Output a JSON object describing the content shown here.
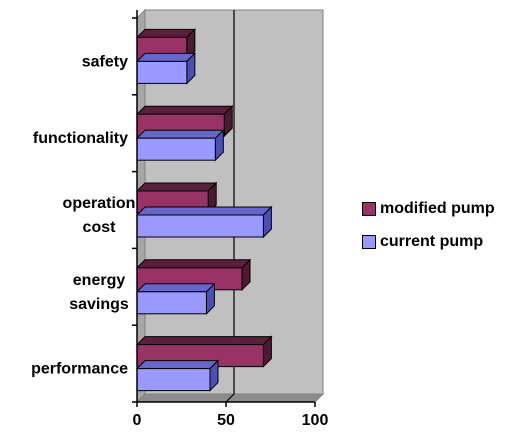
{
  "chart_data": {
    "type": "bar",
    "orientation": "horizontal",
    "categories": [
      "performance",
      "energy savings",
      "operation cost",
      "functionality",
      "safety"
    ],
    "category_lines": [
      [
        "performance"
      ],
      [
        "energy",
        "savings"
      ],
      [
        "operation",
        "cost"
      ],
      [
        "functionality"
      ],
      [
        "safety"
      ]
    ],
    "series": [
      {
        "name": "modified pump",
        "values": [
          71,
          59,
          40,
          49,
          28
        ],
        "color": "#993366",
        "top_color": "#5a1f3c",
        "side_color": "#4c1a33"
      },
      {
        "name": "current pump",
        "values": [
          41,
          39,
          71,
          44,
          28
        ],
        "color": "#9999ff",
        "top_color": "#6666cc",
        "side_color": "#4d4db3"
      }
    ],
    "xlim": [
      0,
      100
    ],
    "xticks": [
      "0",
      "50",
      "100"
    ],
    "plot_background": "#c0c0c0",
    "gridlines": [
      50
    ],
    "legend_position": "right",
    "three_d": true
  }
}
